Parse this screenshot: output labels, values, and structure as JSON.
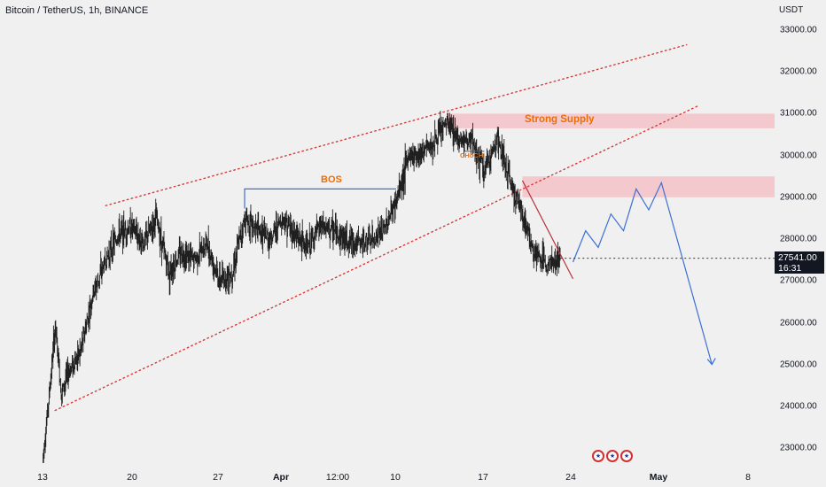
{
  "header": {
    "title": "Bitcoin / TetherUS, 1h, BINANCE",
    "currency": "USDT"
  },
  "price_tag": {
    "price": "27541.00",
    "countdown": "16:31",
    "value": 27541
  },
  "annotations": {
    "bos": "BOS",
    "supply": "Strong Supply",
    "choch": "CHoCH"
  },
  "events": {
    "icon": "us-flag-icon",
    "count": 3
  },
  "colors": {
    "background": "#f0f0f0",
    "candle": "#1e1e1e",
    "channel": "#d63a3a",
    "supply_zone": "#f4c2c7",
    "projection": "#3d6fd6",
    "annotation_text": "#ef6c00",
    "trendline": "#b8323a"
  },
  "chart_data": {
    "type": "candlestick",
    "symbol": "Bitcoin / TetherUS",
    "interval": "1h",
    "exchange": "BINANCE",
    "y_axis": {
      "unit": "USDT",
      "range": [
        22600,
        33450
      ],
      "ticks": [
        "33000.00",
        "32000.00",
        "31000.00",
        "30000.00",
        "29000.00",
        "28000.00",
        "27000.00",
        "26000.00",
        "25000.00",
        "24000.00",
        "23000.00"
      ],
      "tick_values": [
        33000,
        32000,
        31000,
        30000,
        29000,
        28000,
        27000,
        26000,
        25000,
        24000,
        23000
      ]
    },
    "x_axis": {
      "ticks": [
        {
          "label": "13",
          "date": "2023-03-13",
          "bold": false
        },
        {
          "label": "20",
          "date": "2023-03-20",
          "bold": false
        },
        {
          "label": "27",
          "date": "2023-03-27",
          "bold": false
        },
        {
          "label": "Apr",
          "date": "2023-04-01",
          "bold": true
        },
        {
          "label": "12:00",
          "date": "2023-04-03T12:00",
          "bold": false
        },
        {
          "label": "10",
          "date": "2023-04-10",
          "bold": false
        },
        {
          "label": "17",
          "date": "2023-04-17",
          "bold": false
        },
        {
          "label": "24",
          "date": "2023-04-24",
          "bold": false
        },
        {
          "label": "May",
          "date": "2023-05-01",
          "bold": true
        },
        {
          "label": "8",
          "date": "2023-05-08",
          "bold": false
        }
      ]
    },
    "price_path": [
      {
        "date": "2023-03-13",
        "price": 22700
      },
      {
        "date": "2023-03-13T12:00",
        "price": 24200
      },
      {
        "date": "2023-03-14",
        "price": 25900
      },
      {
        "date": "2023-03-14T12:00",
        "price": 24300
      },
      {
        "date": "2023-03-15",
        "price": 24800
      },
      {
        "date": "2023-03-16",
        "price": 25300
      },
      {
        "date": "2023-03-17",
        "price": 26700
      },
      {
        "date": "2023-03-18",
        "price": 27500
      },
      {
        "date": "2023-03-19",
        "price": 28100
      },
      {
        "date": "2023-03-20",
        "price": 28300
      },
      {
        "date": "2023-03-21",
        "price": 27900
      },
      {
        "date": "2023-03-22",
        "price": 28500
      },
      {
        "date": "2023-03-23",
        "price": 27200
      },
      {
        "date": "2023-03-24",
        "price": 27700
      },
      {
        "date": "2023-03-25",
        "price": 27500
      },
      {
        "date": "2023-03-26",
        "price": 27900
      },
      {
        "date": "2023-03-27",
        "price": 27000
      },
      {
        "date": "2023-03-28",
        "price": 27200
      },
      {
        "date": "2023-03-29",
        "price": 28500
      },
      {
        "date": "2023-03-30",
        "price": 28200
      },
      {
        "date": "2023-03-31",
        "price": 28000
      },
      {
        "date": "2023-04-01",
        "price": 28500
      },
      {
        "date": "2023-04-02",
        "price": 28100
      },
      {
        "date": "2023-04-03",
        "price": 27800
      },
      {
        "date": "2023-04-04",
        "price": 28300
      },
      {
        "date": "2023-04-05",
        "price": 28200
      },
      {
        "date": "2023-04-06",
        "price": 28000
      },
      {
        "date": "2023-04-07",
        "price": 27900
      },
      {
        "date": "2023-04-08",
        "price": 27950
      },
      {
        "date": "2023-04-09",
        "price": 28200
      },
      {
        "date": "2023-04-10",
        "price": 28900
      },
      {
        "date": "2023-04-11",
        "price": 30000
      },
      {
        "date": "2023-04-12",
        "price": 30100
      },
      {
        "date": "2023-04-13",
        "price": 30300
      },
      {
        "date": "2023-04-14",
        "price": 30800
      },
      {
        "date": "2023-04-15",
        "price": 30400
      },
      {
        "date": "2023-04-16",
        "price": 30300
      },
      {
        "date": "2023-04-17",
        "price": 29600
      },
      {
        "date": "2023-04-18",
        "price": 30400
      },
      {
        "date": "2023-04-19",
        "price": 29400
      },
      {
        "date": "2023-04-20",
        "price": 28600
      },
      {
        "date": "2023-04-21",
        "price": 27600
      },
      {
        "date": "2023-04-22",
        "price": 27400
      },
      {
        "date": "2023-04-23",
        "price": 27541
      }
    ],
    "channel": {
      "upper": [
        {
          "date": "2023-03-18",
          "price": 28800
        },
        {
          "date": "2023-05-03",
          "price": 32650
        }
      ],
      "lower": [
        {
          "date": "2023-03-14",
          "price": 23900
        },
        {
          "date": "2023-05-04",
          "price": 31200
        }
      ]
    },
    "supply_zones": [
      {
        "label": "Strong Supply",
        "from_date": "2023-04-14",
        "low": 30650,
        "high": 31000
      },
      {
        "label": "",
        "from_date": "2023-04-20",
        "low": 29000,
        "high": 29500
      }
    ],
    "bos_line": {
      "label": "BOS",
      "from_date": "2023-03-29",
      "to_date": "2023-04-10",
      "price": 29200
    },
    "choch_marker": {
      "label": "CHoCH",
      "date": "2023-04-16",
      "price": 30100
    },
    "trendline": [
      {
        "date": "2023-04-20",
        "price": 29400
      },
      {
        "date": "2023-04-24",
        "price": 27050
      }
    ],
    "projection": [
      {
        "date": "2023-04-24",
        "price": 27450
      },
      {
        "date": "2023-04-25",
        "price": 28200
      },
      {
        "date": "2023-04-26",
        "price": 27800
      },
      {
        "date": "2023-04-27",
        "price": 28600
      },
      {
        "date": "2023-04-28",
        "price": 28200
      },
      {
        "date": "2023-04-29",
        "price": 29200
      },
      {
        "date": "2023-04-30",
        "price": 28700
      },
      {
        "date": "2023-05-01",
        "price": 29350
      },
      {
        "date": "2023-05-05",
        "price": 25000
      }
    ],
    "last_price": 27541,
    "grid": false
  }
}
